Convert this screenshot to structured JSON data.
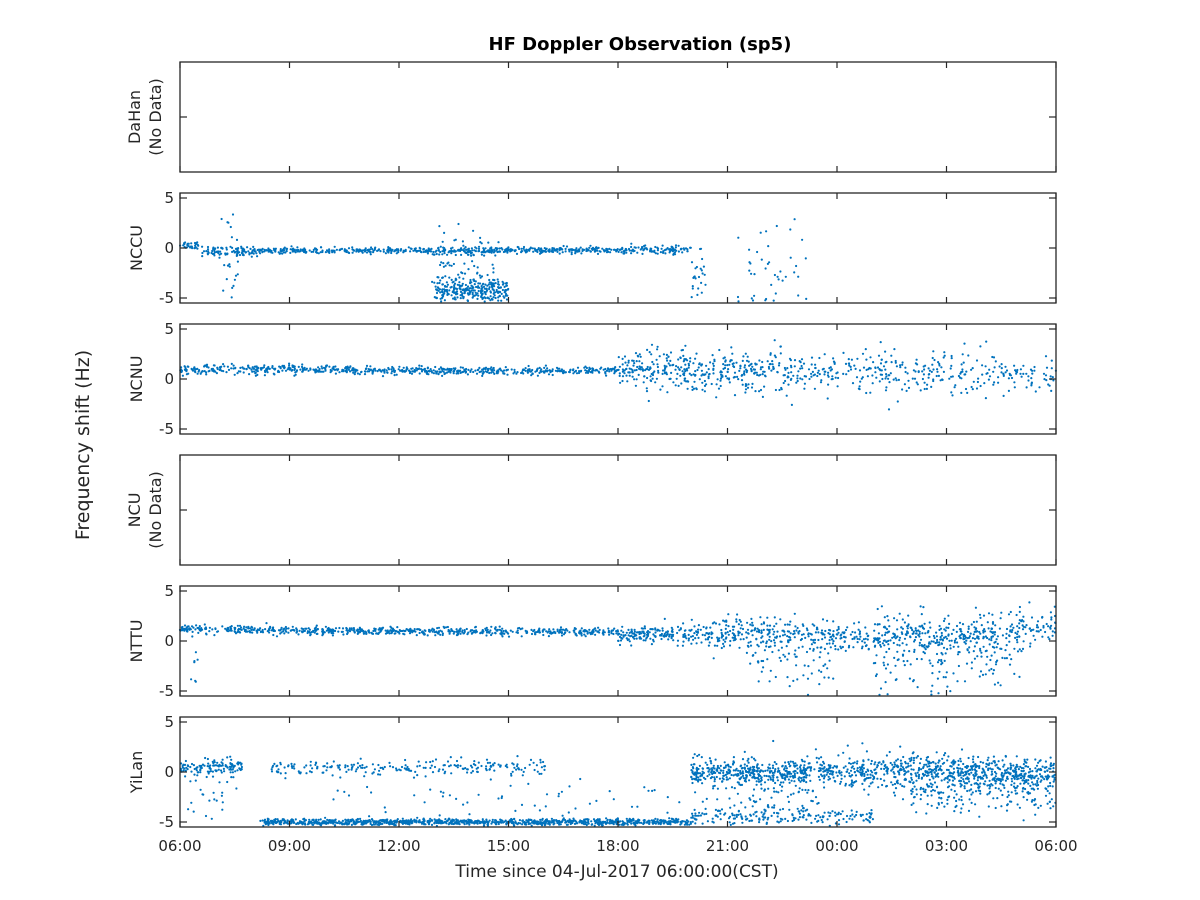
{
  "chart_data": {
    "type": "scatter",
    "title": "HF Doppler Observation (sp5)",
    "xlabel": "Time since 04-Jul-2017 06:00:00(CST)",
    "ylabel": "Frequency shift (Hz)",
    "x_ticks": [
      "06:00",
      "09:00",
      "12:00",
      "15:00",
      "18:00",
      "21:00",
      "00:00",
      "03:00",
      "06:00"
    ],
    "xlim_hours": [
      0,
      24
    ],
    "ylim": [
      -5.5,
      5.5
    ],
    "y_ticks": [
      "5",
      "0",
      "-5"
    ],
    "marker_color": "#0072BD",
    "panels": [
      {
        "label": "DaHan",
        "sublabel": "(No Data)",
        "has_data": false,
        "segments": []
      },
      {
        "label": "NCCU",
        "sublabel": "",
        "has_data": true,
        "segments": [
          {
            "x": [
              0.0,
              0.5
            ],
            "y": [
              0.3,
              0.3
            ],
            "spread": 0.2,
            "density": 60
          },
          {
            "x": [
              0.6,
              2.0
            ],
            "y": [
              -0.4,
              -0.3
            ],
            "spread": 0.25,
            "density": 60
          },
          {
            "x": [
              2.0,
              12.0
            ],
            "y": [
              -0.3,
              -0.2
            ],
            "spread": 0.15,
            "density": 55
          },
          {
            "x": [
              12.0,
              14.0
            ],
            "y": [
              -0.2,
              -0.2
            ],
            "spread": 0.2,
            "density": 55
          },
          {
            "x": [
              7.0,
              9.0
            ],
            "y": [
              -4.4,
              -4.2
            ],
            "spread": 0.6,
            "density": 130
          },
          {
            "x": [
              6.9,
              8.8
            ],
            "y": [
              -2.5,
              -2.5
            ],
            "spread": 2.2,
            "density": 60
          },
          {
            "x": [
              1.1,
              1.6
            ],
            "y": [
              -2.0,
              -2.0
            ],
            "spread": 2.8,
            "density": 50
          },
          {
            "x": [
              14.0,
              14.4
            ],
            "y": [
              -3.5,
              -3.5
            ],
            "spread": 1.5,
            "density": 60
          },
          {
            "x": [
              15.2,
              17.2
            ],
            "y": [
              -2.5,
              -2.5
            ],
            "spread": 2.5,
            "density": 25
          }
        ]
      },
      {
        "label": "NCNU",
        "sublabel": "",
        "has_data": true,
        "segments": [
          {
            "x": [
              0.0,
              3.0
            ],
            "y": [
              0.9,
              1.0
            ],
            "spread": 0.25,
            "density": 55
          },
          {
            "x": [
              3.0,
              7.0
            ],
            "y": [
              1.0,
              0.8
            ],
            "spread": 0.2,
            "density": 55
          },
          {
            "x": [
              7.0,
              12.0
            ],
            "y": [
              0.8,
              0.8
            ],
            "spread": 0.2,
            "density": 55
          },
          {
            "x": [
              12.0,
              14.0
            ],
            "y": [
              0.8,
              0.8
            ],
            "spread": 1.0,
            "density": 90
          },
          {
            "x": [
              14.0,
              18.0
            ],
            "y": [
              0.8,
              0.7
            ],
            "spread": 1.0,
            "density": 70
          },
          {
            "x": [
              18.0,
              24.0
            ],
            "y": [
              0.7,
              0.6
            ],
            "spread": 1.1,
            "density": 45
          }
        ]
      },
      {
        "label": "NCU",
        "sublabel": "(No Data)",
        "has_data": false,
        "segments": []
      },
      {
        "label": "NTTU",
        "sublabel": "",
        "has_data": true,
        "segments": [
          {
            "x": [
              0.0,
              4.0
            ],
            "y": [
              1.2,
              1.0
            ],
            "spread": 0.2,
            "density": 55
          },
          {
            "x": [
              4.0,
              12.0
            ],
            "y": [
              1.0,
              0.9
            ],
            "spread": 0.2,
            "density": 55
          },
          {
            "x": [
              12.0,
              14.0
            ],
            "y": [
              0.5,
              0.8
            ],
            "spread": 0.4,
            "density": 80
          },
          {
            "x": [
              14.0,
              18.0
            ],
            "y": [
              0.8,
              0.6
            ],
            "spread": 0.8,
            "density": 70
          },
          {
            "x": [
              18.0,
              22.0
            ],
            "y": [
              0.5,
              0.5
            ],
            "spread": 0.9,
            "density": 70
          },
          {
            "x": [
              22.0,
              24.0
            ],
            "y": [
              0.8,
              1.4
            ],
            "spread": 0.9,
            "density": 60
          },
          {
            "x": [
              15.5,
              18.0
            ],
            "y": [
              -1.5,
              -2.5
            ],
            "spread": 1.8,
            "density": 30
          },
          {
            "x": [
              19.0,
              23.0
            ],
            "y": [
              -1.5,
              -2.0
            ],
            "spread": 2.0,
            "density": 45
          },
          {
            "x": [
              0.3,
              0.6
            ],
            "y": [
              -2.0,
              -2.0
            ],
            "spread": 2.5,
            "density": 30
          }
        ]
      },
      {
        "label": "YiLan",
        "sublabel": "",
        "has_data": true,
        "segments": [
          {
            "x": [
              0.0,
              1.7
            ],
            "y": [
              0.4,
              0.6
            ],
            "spread": 0.35,
            "density": 70
          },
          {
            "x": [
              2.5,
              10.0
            ],
            "y": [
              0.4,
              0.5
            ],
            "spread": 0.4,
            "density": 30
          },
          {
            "x": [
              2.2,
              14.0
            ],
            "y": [
              -5.0,
              -5.0
            ],
            "spread": 0.15,
            "density": 90
          },
          {
            "x": [
              14.0,
              17.3
            ],
            "y": [
              0.0,
              0.0
            ],
            "spread": 0.6,
            "density": 110
          },
          {
            "x": [
              14.0,
              19.0
            ],
            "y": [
              -4.5,
              -4.5
            ],
            "spread": 0.35,
            "density": 35
          },
          {
            "x": [
              17.5,
              24.0
            ],
            "y": [
              0.0,
              0.0
            ],
            "spread": 0.8,
            "density": 110
          },
          {
            "x": [
              20.0,
              24.0
            ],
            "y": [
              -1.8,
              -1.5
            ],
            "spread": 1.2,
            "density": 60
          },
          {
            "x": [
              0.2,
              1.6
            ],
            "y": [
              -2.0,
              -2.0
            ],
            "spread": 1.8,
            "density": 20
          },
          {
            "x": [
              4.0,
              14.0
            ],
            "y": [
              -3.5,
              -3.0
            ],
            "spread": 1.3,
            "density": 6
          },
          {
            "x": [
              14.0,
              17.5
            ],
            "y": [
              -1.2,
              -1.2
            ],
            "spread": 1.5,
            "density": 40
          }
        ]
      }
    ]
  }
}
